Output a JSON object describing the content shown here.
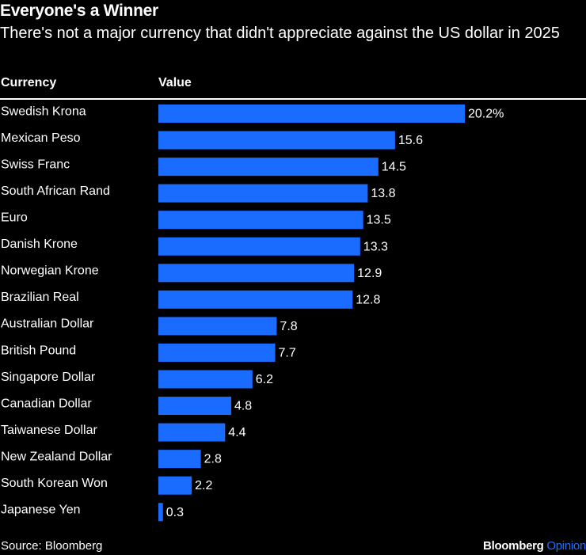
{
  "header": {
    "title": "Everyone's a Winner",
    "subtitle": "There's not a major currency that didn't appreciate against the US dollar in 2025"
  },
  "table": {
    "col_currency": "Currency",
    "col_value": "Value"
  },
  "footer": {
    "source": "Source: Bloomberg",
    "brand_primary": "Bloomberg",
    "brand_secondary": "Opinion"
  },
  "colors": {
    "background": "#000000",
    "bar": "#1a6bff",
    "text": "#ffffff",
    "brand_accent": "#1f6fff"
  },
  "chart_data": {
    "type": "bar",
    "orientation": "horizontal",
    "title": "Everyone's a Winner",
    "subtitle": "There's not a major currency that didn't appreciate against the US dollar in 2025",
    "xlabel": "",
    "ylabel": "",
    "unit": "%",
    "xlim": [
      0,
      20.2
    ],
    "categories": [
      "Swedish Krona",
      "Mexican Peso",
      "Swiss Franc",
      "South African Rand",
      "Euro",
      "Danish Krone",
      "Norwegian Krone",
      "Brazilian Real",
      "Australian Dollar",
      "British Pound",
      "Singapore Dollar",
      "Canadian Dollar",
      "Taiwanese Dollar",
      "New Zealand Dollar",
      "South Korean Won",
      "Japanese Yen"
    ],
    "values": [
      20.2,
      15.6,
      14.5,
      13.8,
      13.5,
      13.3,
      12.9,
      12.8,
      7.8,
      7.7,
      6.2,
      4.8,
      4.4,
      2.8,
      2.2,
      0.3
    ],
    "value_labels": [
      "20.2%",
      "15.6",
      "14.5",
      "13.8",
      "13.5",
      "13.3",
      "12.9",
      "12.8",
      "7.8",
      "7.7",
      "6.2",
      "4.8",
      "4.4",
      "2.8",
      "2.2",
      "0.3"
    ]
  }
}
